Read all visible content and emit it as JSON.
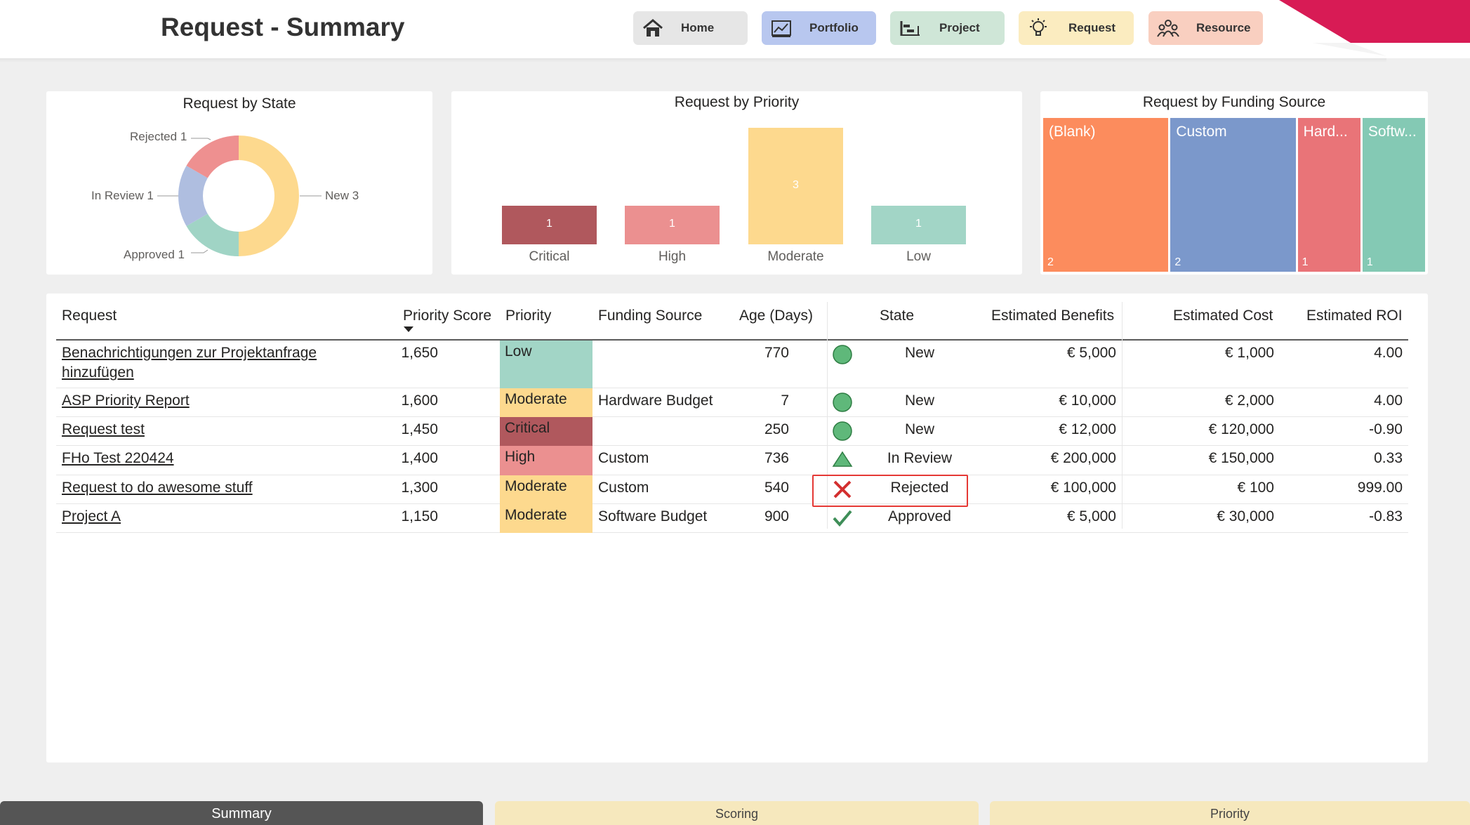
{
  "header": {
    "title": "Request - Summary",
    "nav": [
      {
        "label": "Home",
        "icon": "home-icon",
        "color": "#e6e6e6"
      },
      {
        "label": "Portfolio",
        "icon": "portfolio-chart-icon",
        "color": "#b8c7ef"
      },
      {
        "label": "Project",
        "icon": "project-gantt-icon",
        "color": "#cfe6d7"
      },
      {
        "label": "Request",
        "icon": "lightbulb-icon",
        "color": "#fbecc0"
      },
      {
        "label": "Resource",
        "icon": "people-icon",
        "color": "#f9cfc0"
      }
    ]
  },
  "state_chart": {
    "title": "Request by State",
    "chart_data": {
      "type": "pie",
      "title": "Request by State",
      "labels": [
        "New",
        "Approved",
        "In Review",
        "Rejected"
      ],
      "values": [
        3,
        1,
        1,
        1
      ],
      "colors": [
        "#fdd98e",
        "#a0d4c5",
        "#afbee0",
        "#ee9090"
      ],
      "label_text": [
        "New 3",
        "Approved 1",
        "In Review 1",
        "Rejected 1"
      ]
    }
  },
  "priority_chart": {
    "title": "Request by Priority",
    "chart_data": {
      "type": "bar",
      "title": "Request by Priority",
      "categories": [
        "Critical",
        "High",
        "Moderate",
        "Low"
      ],
      "values": [
        1,
        1,
        3,
        1
      ],
      "colors": [
        "#b0585d",
        "#eb9090",
        "#fdd98e",
        "#a2d5c6"
      ],
      "ylim": [
        0,
        3
      ]
    }
  },
  "funding_chart": {
    "title": "Request by Funding Source",
    "chart_data": {
      "type": "treemap",
      "title": "Request by Funding Source",
      "categories": [
        "(Blank)",
        "Custom",
        "Hard...",
        "Softw..."
      ],
      "values": [
        2,
        2,
        1,
        1
      ],
      "colors": [
        "#fc8c5d",
        "#7b98cb",
        "#e97478",
        "#84c9b4"
      ]
    }
  },
  "table": {
    "headers": {
      "request": "Request",
      "priority_score": "Priority Score",
      "priority": "Priority",
      "funding_source": "Funding Source",
      "age": "Age (Days)",
      "state": "State",
      "benefits": "Estimated Benefits",
      "cost": "Estimated Cost",
      "roi": "Estimated ROI"
    },
    "rows": [
      {
        "request_line1": "Benachrichtigungen zur Projektanfrage",
        "request_line2": "hinzufügen",
        "score": "1,650",
        "priority": "Low",
        "priority_color": "#a2d5c6",
        "funding": "",
        "age": "770",
        "state": "New",
        "state_icon": "circle-green-icon",
        "benefits": "€ 5,000",
        "cost": "€ 1,000",
        "roi": "4.00"
      },
      {
        "request_line1": "ASP Priority Report",
        "request_line2": "",
        "score": "1,600",
        "priority": "Moderate",
        "priority_color": "#fdd98e",
        "funding": "Hardware Budget",
        "age": "7",
        "state": "New",
        "state_icon": "circle-green-icon",
        "benefits": "€ 10,000",
        "cost": "€ 2,000",
        "roi": "4.00"
      },
      {
        "request_line1": "Request test",
        "request_line2": "",
        "score": "1,450",
        "priority": "Critical",
        "priority_color": "#b0585d",
        "funding": "",
        "age": "250",
        "state": "New",
        "state_icon": "circle-green-icon",
        "benefits": "€ 12,000",
        "cost": "€ 120,000",
        "roi": "-0.90"
      },
      {
        "request_line1": "FHo Test 220424",
        "request_line2": "",
        "score": "1,400",
        "priority": "High",
        "priority_color": "#eb9090",
        "funding": "Custom",
        "age": "736",
        "state": "In Review",
        "state_icon": "triangle-green-icon",
        "benefits": "€ 200,000",
        "cost": "€ 150,000",
        "roi": "0.33"
      },
      {
        "request_line1": "Request to do awesome stuff",
        "request_line2": "",
        "score": "1,300",
        "priority": "Moderate",
        "priority_color": "#fdd98e",
        "funding": "Custom",
        "age": "540",
        "state": "Rejected",
        "state_icon": "red-x-icon",
        "benefits": "€ 100,000",
        "cost": "€ 100",
        "roi": "999.00"
      },
      {
        "request_line1": "Project A",
        "request_line2": "",
        "score": "1,150",
        "priority": "Moderate",
        "priority_color": "#fdd98e",
        "funding": "Software Budget",
        "age": "900",
        "state": "Approved",
        "state_icon": "checkmark-green-icon",
        "benefits": "€ 5,000",
        "cost": "€ 30,000",
        "roi": "-0.83"
      }
    ]
  },
  "tabs": [
    {
      "label": "Summary",
      "active": true
    },
    {
      "label": "Scoring",
      "active": false
    },
    {
      "label": "Priority",
      "active": false
    }
  ],
  "colors": {
    "accent": "#d81b55",
    "active_tab": "#555555",
    "inactive_tab": "#f6e8bd",
    "highlight_border": "#e53935"
  }
}
